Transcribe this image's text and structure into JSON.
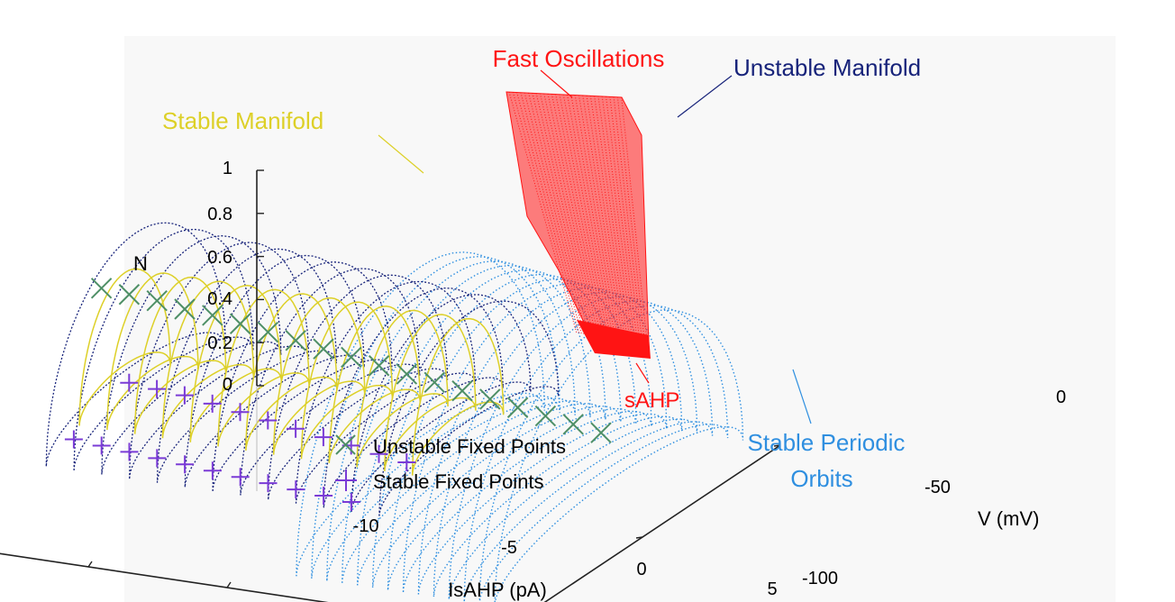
{
  "chart_data": {
    "type": "scatter",
    "subtype": "3d-bifurcation-diagram",
    "axes": {
      "x": {
        "label": "IsAHP (pA)",
        "ticks": [
          "-10",
          "-5",
          "0",
          "5"
        ],
        "range": [
          -14,
          5
        ]
      },
      "y": {
        "label": "V (mV)",
        "ticks": [
          "0",
          "-50",
          "-100"
        ],
        "range": [
          -100,
          0
        ]
      },
      "z": {
        "label": "N",
        "ticks": [
          "1",
          "0.8",
          "0.6",
          "0.4",
          "0.2",
          "0"
        ],
        "range": [
          0,
          1
        ]
      }
    },
    "legend": {
      "placement": "bottom-left",
      "entries": [
        {
          "label": "Unstable Fixed Points",
          "marker": "x",
          "color": "#4e8f66"
        },
        {
          "label": "Stable Fixed Points",
          "marker": "+",
          "color": "#7a3bd6"
        }
      ]
    },
    "annotations": {
      "fast_oscillations": "Fast Oscillations",
      "unstable_manifold": "Unstable Manifold",
      "stable_manifold": "Stable Manifold",
      "sahp": "sAHP",
      "stable_periodic_orbits_line1": "Stable Periodic",
      "stable_periodic_orbits_line2": "Orbits"
    },
    "series": [
      {
        "name": "Unstable Fixed Points",
        "marker": "x",
        "points": [
          {
            "x": -13.5,
            "y": -60,
            "z": 0.9
          },
          {
            "x": -12.5,
            "y": -60,
            "z": 0.89
          },
          {
            "x": -11.5,
            "y": -60,
            "z": 0.88
          },
          {
            "x": -10.5,
            "y": -60,
            "z": 0.86
          },
          {
            "x": -9.5,
            "y": -60,
            "z": 0.85
          },
          {
            "x": -8.5,
            "y": -60,
            "z": 0.83
          },
          {
            "x": -7.5,
            "y": -60,
            "z": 0.81
          },
          {
            "x": -6.5,
            "y": -60,
            "z": 0.79
          },
          {
            "x": -5.5,
            "y": -60,
            "z": 0.77
          },
          {
            "x": -4.5,
            "y": -60,
            "z": 0.75
          },
          {
            "x": -3.5,
            "y": -60,
            "z": 0.73
          },
          {
            "x": -2.5,
            "y": -60,
            "z": 0.71
          },
          {
            "x": -1.5,
            "y": -60,
            "z": 0.69
          },
          {
            "x": -0.5,
            "y": -60,
            "z": 0.67
          },
          {
            "x": 0.5,
            "y": -60,
            "z": 0.65
          },
          {
            "x": 1.5,
            "y": -60,
            "z": 0.63
          },
          {
            "x": 2.5,
            "y": -60,
            "z": 0.61
          },
          {
            "x": 3.5,
            "y": -60,
            "z": 0.59
          },
          {
            "x": 4.5,
            "y": -60,
            "z": 0.57
          }
        ]
      },
      {
        "name": "Stable Fixed Points",
        "marker": "+",
        "points": [
          {
            "x": -14,
            "y": -65,
            "z": 0.22
          },
          {
            "x": -13,
            "y": -65,
            "z": 0.21
          },
          {
            "x": -12,
            "y": -65,
            "z": 0.2
          },
          {
            "x": -11,
            "y": -65,
            "z": 0.19
          },
          {
            "x": -10,
            "y": -65,
            "z": 0.18
          },
          {
            "x": -9,
            "y": -65,
            "z": 0.17
          },
          {
            "x": -8,
            "y": -65,
            "z": 0.16
          },
          {
            "x": -7,
            "y": -65,
            "z": 0.15
          },
          {
            "x": -6,
            "y": -65,
            "z": 0.14
          },
          {
            "x": -5,
            "y": -65,
            "z": 0.13
          },
          {
            "x": -4,
            "y": -65,
            "z": 0.12
          },
          {
            "x": -13,
            "y": -55,
            "z": 0.42
          },
          {
            "x": -12,
            "y": -55,
            "z": 0.41
          },
          {
            "x": -11,
            "y": -55,
            "z": 0.4
          },
          {
            "x": -10,
            "y": -55,
            "z": 0.38
          },
          {
            "x": -9,
            "y": -55,
            "z": 0.36
          },
          {
            "x": -8,
            "y": -55,
            "z": 0.34
          },
          {
            "x": -7,
            "y": -55,
            "z": 0.32
          },
          {
            "x": -6,
            "y": -55,
            "z": 0.3
          },
          {
            "x": -5,
            "y": -55,
            "z": 0.28
          },
          {
            "x": -4,
            "y": -55,
            "z": 0.26
          },
          {
            "x": -3,
            "y": -55,
            "z": 0.24
          }
        ]
      }
    ],
    "colors": {
      "fast_oscillations": "#ff1414",
      "unstable_manifold": "#17237a",
      "stable_manifold": "#ddd028",
      "stable_periodic_orbits": "#2f8fe0",
      "unstable_fixed_points": "#4e8f66",
      "stable_fixed_points": "#7a3bd6",
      "axis": "#222222"
    }
  }
}
